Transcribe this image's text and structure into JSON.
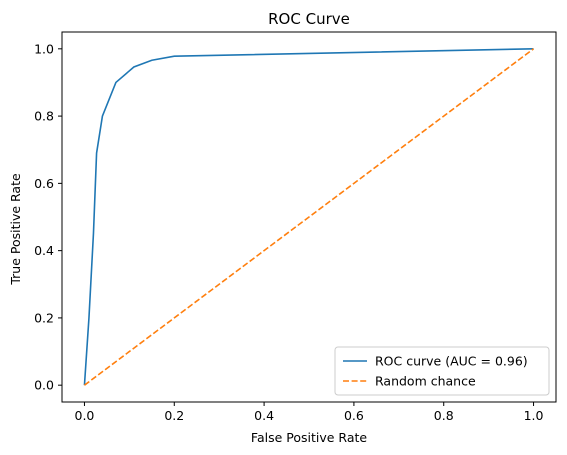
{
  "chart_data": {
    "type": "line",
    "title": "ROC Curve",
    "xlabel": "False Positive Rate",
    "ylabel": "True Positive Rate",
    "xlim": [
      -0.05,
      1.05
    ],
    "ylim": [
      -0.05,
      1.05
    ],
    "xticks": [
      0.0,
      0.2,
      0.4,
      0.6,
      0.8,
      1.0
    ],
    "yticks": [
      0.0,
      0.2,
      0.4,
      0.6,
      0.8,
      1.0
    ],
    "xtick_labels": [
      "0.0",
      "0.2",
      "0.4",
      "0.6",
      "0.8",
      "1.0"
    ],
    "ytick_labels": [
      "0.0",
      "0.2",
      "0.4",
      "0.6",
      "0.8",
      "1.0"
    ],
    "grid": false,
    "legend_position": "bottom-right",
    "series": [
      {
        "name": "ROC curve (AUC = 0.96)",
        "color": "#1f77b4",
        "style": "solid",
        "x": [
          0.0,
          0.01,
          0.02,
          0.027,
          0.04,
          0.07,
          0.11,
          0.15,
          0.2,
          1.0
        ],
        "y": [
          0.0,
          0.2,
          0.45,
          0.69,
          0.8,
          0.9,
          0.946,
          0.966,
          0.978,
          1.0
        ]
      },
      {
        "name": "Random chance",
        "color": "#ff7f0e",
        "style": "dashed",
        "x": [
          0.0,
          1.0
        ],
        "y": [
          0.0,
          1.0
        ]
      }
    ]
  }
}
